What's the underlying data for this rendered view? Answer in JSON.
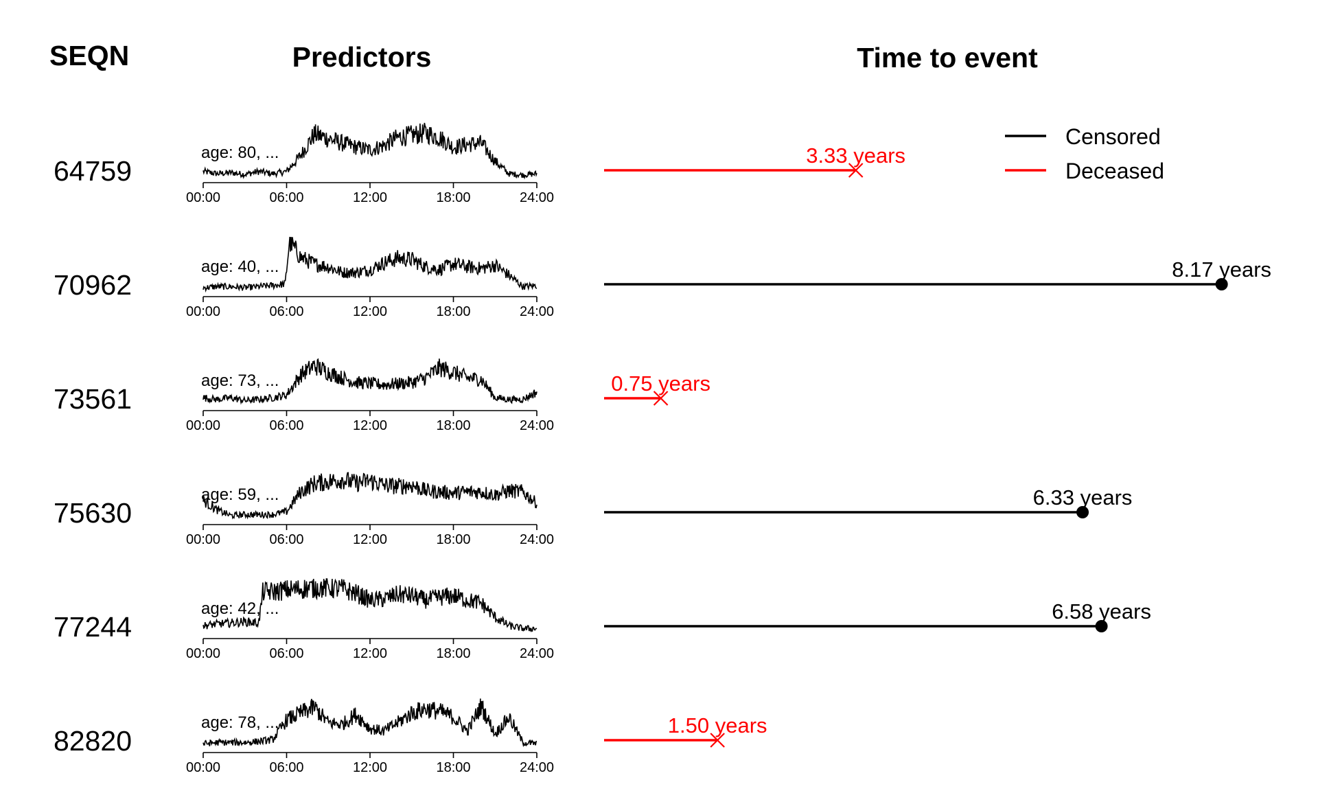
{
  "headers": {
    "seqn": "SEQN",
    "predictors": "Predictors",
    "time_to_event": "Time to event"
  },
  "legend": {
    "placement": "top-right",
    "items": [
      {
        "label": "Censored",
        "color": "#000000"
      },
      {
        "label": "Deceased",
        "color": "#ff0000"
      }
    ]
  },
  "chart_data": {
    "type": "line",
    "predictor_axis": {
      "ticks": [
        "00:00",
        "06:00",
        "12:00",
        "18:00",
        "24:00"
      ],
      "range_hours": [
        0,
        24
      ]
    },
    "time_axis": {
      "range_years": [
        0,
        8.5
      ]
    },
    "colors": {
      "censored": "#000000",
      "deceased": "#ff0000"
    },
    "subjects": [
      {
        "seqn": "64759",
        "age_label": "age: 80, ...",
        "event_years": 3.33,
        "event_label": "3.33 years",
        "status": "deceased",
        "activity_profile": [
          [
            0,
            0.12
          ],
          [
            1,
            0.08
          ],
          [
            2,
            0.1
          ],
          [
            3,
            0.07
          ],
          [
            4,
            0.12
          ],
          [
            5,
            0.08
          ],
          [
            6,
            0.12
          ],
          [
            7,
            0.4
          ],
          [
            8,
            0.78
          ],
          [
            9,
            0.7
          ],
          [
            10,
            0.62
          ],
          [
            11,
            0.55
          ],
          [
            12,
            0.5
          ],
          [
            13,
            0.58
          ],
          [
            14,
            0.72
          ],
          [
            15,
            0.76
          ],
          [
            16,
            0.8
          ],
          [
            17,
            0.72
          ],
          [
            18,
            0.55
          ],
          [
            19,
            0.6
          ],
          [
            20,
            0.62
          ],
          [
            21,
            0.3
          ],
          [
            22,
            0.08
          ],
          [
            23,
            0.06
          ],
          [
            24,
            0.08
          ]
        ]
      },
      {
        "seqn": "70962",
        "age_label": "age: 40, ...",
        "event_years": 8.17,
        "event_label": "8.17 years",
        "status": "censored",
        "activity_profile": [
          [
            0,
            0.08
          ],
          [
            1,
            0.1
          ],
          [
            2,
            0.1
          ],
          [
            3,
            0.08
          ],
          [
            4,
            0.1
          ],
          [
            5,
            0.12
          ],
          [
            5.9,
            0.15
          ],
          [
            6.2,
            0.9
          ],
          [
            7,
            0.62
          ],
          [
            8,
            0.5
          ],
          [
            9,
            0.45
          ],
          [
            10,
            0.35
          ],
          [
            11,
            0.35
          ],
          [
            12,
            0.4
          ],
          [
            13,
            0.52
          ],
          [
            14,
            0.6
          ],
          [
            15,
            0.58
          ],
          [
            16,
            0.45
          ],
          [
            17,
            0.4
          ],
          [
            18,
            0.5
          ],
          [
            19,
            0.45
          ],
          [
            20,
            0.42
          ],
          [
            21,
            0.48
          ],
          [
            22,
            0.3
          ],
          [
            23,
            0.1
          ],
          [
            24,
            0.12
          ]
        ]
      },
      {
        "seqn": "73561",
        "age_label": "age: 73, ...",
        "event_years": 0.75,
        "event_label": "0.75 years",
        "status": "deceased",
        "activity_profile": [
          [
            0,
            0.15
          ],
          [
            1,
            0.12
          ],
          [
            2,
            0.15
          ],
          [
            3,
            0.1
          ],
          [
            4,
            0.12
          ],
          [
            5,
            0.15
          ],
          [
            6,
            0.2
          ],
          [
            7,
            0.55
          ],
          [
            8,
            0.72
          ],
          [
            9,
            0.6
          ],
          [
            10,
            0.5
          ],
          [
            11,
            0.42
          ],
          [
            12,
            0.4
          ],
          [
            13,
            0.38
          ],
          [
            14,
            0.4
          ],
          [
            15,
            0.42
          ],
          [
            16,
            0.5
          ],
          [
            17,
            0.68
          ],
          [
            18,
            0.6
          ],
          [
            19,
            0.5
          ],
          [
            20,
            0.48
          ],
          [
            21,
            0.15
          ],
          [
            22,
            0.12
          ],
          [
            23,
            0.12
          ],
          [
            24,
            0.25
          ]
        ]
      },
      {
        "seqn": "75630",
        "age_label": "age: 59, ...",
        "event_years": 6.33,
        "event_label": "6.33 years",
        "status": "censored",
        "activity_profile": [
          [
            0,
            0.35
          ],
          [
            1,
            0.18
          ],
          [
            2,
            0.08
          ],
          [
            3,
            0.1
          ],
          [
            4,
            0.1
          ],
          [
            5,
            0.1
          ],
          [
            6,
            0.15
          ],
          [
            7,
            0.5
          ],
          [
            8,
            0.65
          ],
          [
            9,
            0.68
          ],
          [
            10,
            0.72
          ],
          [
            11,
            0.65
          ],
          [
            12,
            0.7
          ],
          [
            13,
            0.62
          ],
          [
            14,
            0.6
          ],
          [
            15,
            0.62
          ],
          [
            16,
            0.52
          ],
          [
            17,
            0.5
          ],
          [
            18,
            0.48
          ],
          [
            19,
            0.5
          ],
          [
            20,
            0.5
          ],
          [
            21,
            0.45
          ],
          [
            22,
            0.52
          ],
          [
            23,
            0.5
          ],
          [
            24,
            0.3
          ]
        ]
      },
      {
        "seqn": "77244",
        "age_label": "age: 42, ...",
        "event_years": 6.58,
        "event_label": "6.58 years",
        "status": "censored",
        "activity_profile": [
          [
            0,
            0.15
          ],
          [
            1,
            0.18
          ],
          [
            2,
            0.2
          ],
          [
            3,
            0.22
          ],
          [
            4,
            0.2
          ],
          [
            4.3,
            0.75
          ],
          [
            5,
            0.75
          ],
          [
            6,
            0.78
          ],
          [
            7,
            0.8
          ],
          [
            8,
            0.82
          ],
          [
            9,
            0.82
          ],
          [
            10,
            0.8
          ],
          [
            11,
            0.72
          ],
          [
            12,
            0.6
          ],
          [
            13,
            0.62
          ],
          [
            14,
            0.7
          ],
          [
            15,
            0.68
          ],
          [
            16,
            0.6
          ],
          [
            17,
            0.65
          ],
          [
            18,
            0.68
          ],
          [
            19,
            0.6
          ],
          [
            20,
            0.55
          ],
          [
            21,
            0.3
          ],
          [
            22,
            0.15
          ],
          [
            23,
            0.1
          ],
          [
            24,
            0.1
          ]
        ]
      },
      {
        "seqn": "82820",
        "age_label": "age: 78, ...",
        "event_years": 1.5,
        "event_label": "1.50 years",
        "status": "deceased",
        "activity_profile": [
          [
            0,
            0.08
          ],
          [
            1,
            0.1
          ],
          [
            2,
            0.1
          ],
          [
            3,
            0.1
          ],
          [
            4,
            0.12
          ],
          [
            5,
            0.15
          ],
          [
            6,
            0.5
          ],
          [
            7,
            0.62
          ],
          [
            8,
            0.72
          ],
          [
            9,
            0.45
          ],
          [
            10,
            0.42
          ],
          [
            11,
            0.6
          ],
          [
            12,
            0.35
          ],
          [
            13,
            0.3
          ],
          [
            14,
            0.45
          ],
          [
            15,
            0.62
          ],
          [
            16,
            0.7
          ],
          [
            17,
            0.65
          ],
          [
            18,
            0.55
          ],
          [
            19,
            0.3
          ],
          [
            20,
            0.75
          ],
          [
            21,
            0.25
          ],
          [
            22,
            0.55
          ],
          [
            23,
            0.1
          ],
          [
            24,
            0.08
          ]
        ]
      }
    ]
  }
}
